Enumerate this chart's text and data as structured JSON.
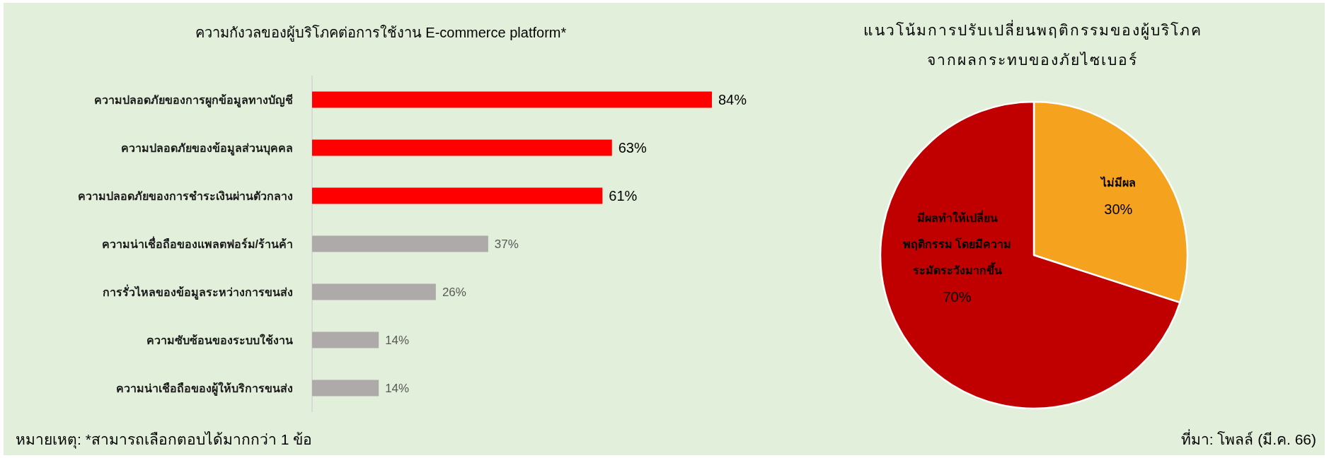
{
  "chart_data": [
    {
      "type": "bar",
      "orientation": "horizontal",
      "title": "ความกังวลของผู้บริโภคต่อการใช้งาน E-commerce platform*",
      "categories": [
        "ความปลอดภัยของการผูกข้อมูลทางบัญชี",
        "ความปลอดภัยของข้อมูลส่วนบุคคล",
        "ความปลอดภัยของการชำระเงินผ่านตัวกลาง",
        "ความน่าเชื่อถือของแพลตฟอร์ม/ร้านค้า",
        "การรั่วไหลของข้อมูลระหว่างการขนส่ง",
        "ความซับซ้อนของระบบใช้งาน",
        "ความน่าเชือถือของผู้ให้บริการขนส่ง"
      ],
      "values": [
        84,
        63,
        61,
        37,
        26,
        14,
        14
      ],
      "colors": [
        "#ff0000",
        "#ff0000",
        "#ff0000",
        "#aeaaaa",
        "#aeaaaa",
        "#aeaaaa",
        "#aeaaaa"
      ],
      "value_labels": [
        "84%",
        "63%",
        "61%",
        "37%",
        "26%",
        "14%",
        "14%"
      ],
      "annotations": [
        "หมายเหตุ: *สามารถเลือกตอบได้มากกว่า 1 ข้อ"
      ]
    },
    {
      "type": "pie",
      "title": "แนวโน้มการปรับเปลี่ยนพฤติกรรมของผู้บริโภคจากผลกระทบของภัยไซเบอร์",
      "categories": [
        "ไม่มีผล",
        "มีผลทำให้เปลี่ยนพฤติกรรม โดยมีความระมัดระวังมากขึ้น"
      ],
      "values": [
        30,
        70
      ],
      "colors": [
        "#f5a31f",
        "#c00000"
      ],
      "value_labels": [
        "30%",
        "70%"
      ],
      "annotations": [
        "ที่มา: โพลล์ (มี.ค. 66)"
      ]
    }
  ]
}
